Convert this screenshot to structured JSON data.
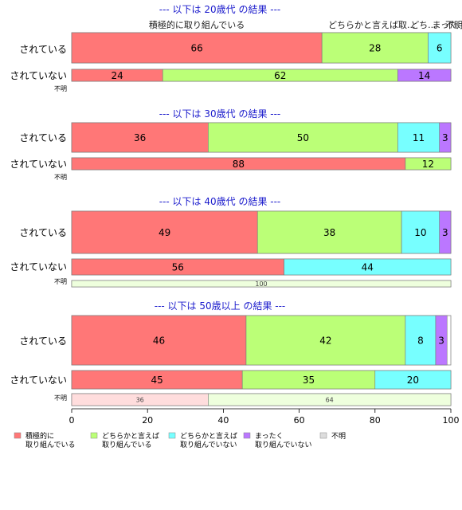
{
  "chart_data": {
    "type": "bar",
    "orientation": "horizontal",
    "stacked": "percent",
    "xlim": [
      0,
      100
    ],
    "x_ticks": [
      "0",
      "20",
      "40",
      "60",
      "80",
      "100"
    ],
    "legend_placement": "bottom-left",
    "series": [
      {
        "key": "s1",
        "name": "積極的に取り組んでいる",
        "legend_lines": [
          "積極的に",
          "取り組んでいる"
        ],
        "color": "#FF7777",
        "faded_color": "#FFDDDD"
      },
      {
        "key": "s2",
        "name": "どちらかと言えば取り組んでいる",
        "legend_lines": [
          "どちらかと言えば",
          "取り組んでいる"
        ],
        "color": "#BBFF77",
        "faded_color": "#EEFFDD"
      },
      {
        "key": "s3",
        "name": "どちらかと言えば取り組んでいない",
        "legend_lines": [
          "どちらかと言えば",
          "取り組んでいない"
        ],
        "color": "#77FFFF",
        "faded_color": "#DDFFFF"
      },
      {
        "key": "s4",
        "name": "まったく取り組んでいない",
        "legend_lines": [
          "まったく",
          "取り組んでいない"
        ],
        "color": "#BB77FF",
        "faded_color": "#EEDDFF"
      },
      {
        "key": "s5",
        "name": "不明",
        "legend_lines": [
          "不明"
        ],
        "color": "#DDDDDD",
        "faded_color": "#EEEEEE"
      }
    ],
    "panels": [
      {
        "title": "--- 以下は 20歳代 の結果 ---",
        "column_labels": [
          "積極的に取り組んでいる",
          "どちらかと言えば取...",
          "どち...",
          "まった...",
          "不明"
        ],
        "rows": [
          {
            "label": "されている",
            "values": [
              66,
              28,
              6,
              0,
              0
            ],
            "faded": false
          },
          {
            "label": "されていない",
            "values": [
              24,
              62,
              0,
              14,
              0
            ],
            "faded": false
          },
          {
            "label": "不明",
            "values": [
              0,
              0,
              0,
              0,
              0
            ],
            "faded": true
          }
        ]
      },
      {
        "title": "--- 以下は 30歳代 の結果 ---",
        "column_labels": [],
        "rows": [
          {
            "label": "されている",
            "values": [
              36,
              50,
              11,
              3,
              0
            ],
            "faded": false
          },
          {
            "label": "されていない",
            "values": [
              88,
              12,
              0,
              0,
              0
            ],
            "faded": false
          },
          {
            "label": "不明",
            "values": [
              0,
              0,
              0,
              0,
              0
            ],
            "faded": true
          }
        ]
      },
      {
        "title": "--- 以下は 40歳代 の結果 ---",
        "column_labels": [],
        "rows": [
          {
            "label": "されている",
            "values": [
              49,
              38,
              10,
              3,
              0
            ],
            "faded": false
          },
          {
            "label": "されていない",
            "values": [
              56,
              0,
              44,
              0,
              0
            ],
            "faded": false
          },
          {
            "label": "不明",
            "values": [
              0,
              100,
              0,
              0,
              0
            ],
            "faded": true
          }
        ]
      },
      {
        "title": "--- 以下は 50歳以上 の結果 ---",
        "column_labels": [],
        "rows": [
          {
            "label": "されている",
            "values": [
              46,
              42,
              8,
              3,
              0
            ],
            "faded": false
          },
          {
            "label": "されていない",
            "values": [
              45,
              35,
              20,
              0,
              0
            ],
            "faded": false
          },
          {
            "label": "不明",
            "values": [
              36,
              64,
              0,
              0,
              0
            ],
            "faded": true
          }
        ]
      }
    ]
  }
}
